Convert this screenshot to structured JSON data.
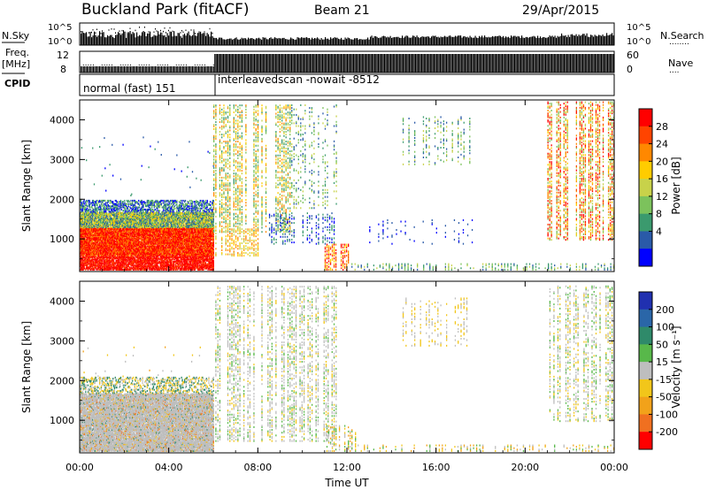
{
  "header": {
    "station": "Buckland Park (fitACF)",
    "beam": "Beam 21",
    "date": "29/Apr/2015"
  },
  "summary": {
    "nsky_label": "N.Sky",
    "nsearch_label": "N.Search",
    "nsearch_dots": "........",
    "freq_label_top": "Freq.",
    "freq_label_unit": "[MHz]",
    "nave_label": "Nave",
    "nave_dots": "....",
    "cpid_label": "CPID",
    "noise_ticks_left": [
      "10^5",
      "10^0"
    ],
    "noise_ticks_right": [
      "10^5",
      "10^0"
    ],
    "freq_ticks": [
      "12",
      "8"
    ],
    "nave_ticks": [
      "60",
      "0"
    ],
    "cpid_1": "normal (fast) 151",
    "cpid_2": "interleavedscan -nowait -8512"
  },
  "chart_data": [
    {
      "type": "heatmap",
      "name": "power-panel",
      "ylabel": "Slant Range [km]",
      "yticks": [
        "4000",
        "3000",
        "2000",
        "1000"
      ],
      "ylim": [
        180,
        4500
      ],
      "colorbar_label": "Power [dB]",
      "colorbar_ticks": [
        "28",
        "24",
        "20",
        "16",
        "12",
        "8",
        "4"
      ],
      "colorbar_colors": [
        "#ff0000",
        "#ff4400",
        "#ff8800",
        "#ffcc00",
        "#c8d24a",
        "#7cc25c",
        "#3b9a6e",
        "#2a5aa8",
        "#0000ff"
      ]
    },
    {
      "type": "heatmap",
      "name": "velocity-panel",
      "ylabel": "Slant Range [km]",
      "yticks": [
        "4000",
        "3000",
        "2000",
        "1000"
      ],
      "ylim": [
        180,
        4500
      ],
      "colorbar_label": "Velocity [m s⁻¹]",
      "colorbar_ticks": [
        "200",
        "100",
        "50",
        "15",
        "-15",
        "-50",
        "-100",
        "-200"
      ],
      "colorbar_colors": [
        "#2030b0",
        "#2a66a8",
        "#2f8a6a",
        "#58b84a",
        "#bebebe",
        "#f2c61a",
        "#f2a21a",
        "#f07020",
        "#ff0000"
      ]
    }
  ],
  "time_axis": {
    "label": "Time UT",
    "ticks": [
      "00:00",
      "04:00",
      "08:00",
      "12:00",
      "16:00",
      "20:00",
      "00:00"
    ]
  }
}
